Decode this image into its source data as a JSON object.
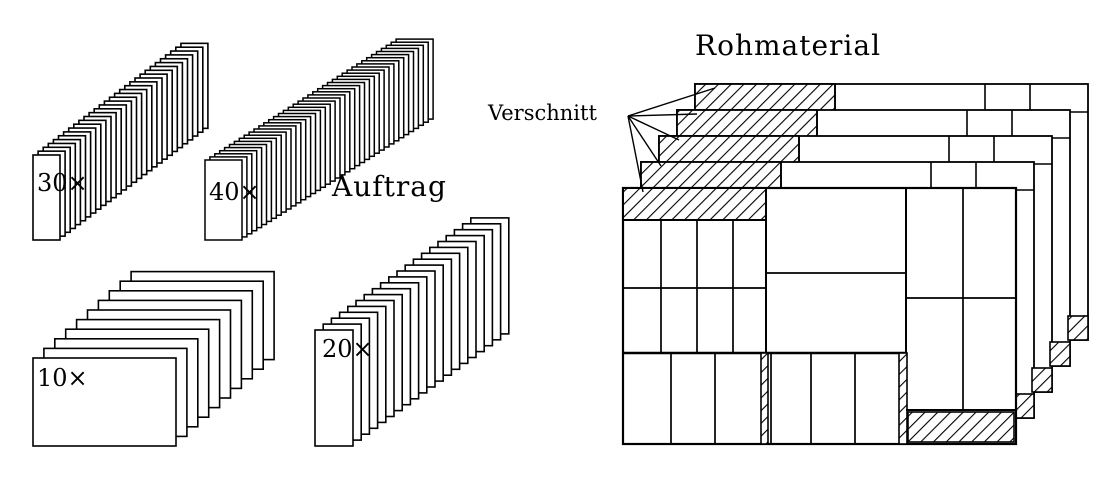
{
  "labels": {
    "rohmaterial": "Rohmaterial",
    "verschnitt": "Verschnitt",
    "auftrag": "Auftrag"
  },
  "stacks": [
    {
      "id": "a",
      "count_label": "30×",
      "count": 30
    },
    {
      "id": "b",
      "count_label": "40×",
      "count": 40
    },
    {
      "id": "c",
      "count_label": "10×",
      "count": 10
    },
    {
      "id": "d",
      "count_label": "20×",
      "count": 20
    }
  ],
  "raw_material": {
    "sheet_count": 5
  },
  "colors": {
    "ink": "#000000",
    "paper": "#ffffff"
  }
}
